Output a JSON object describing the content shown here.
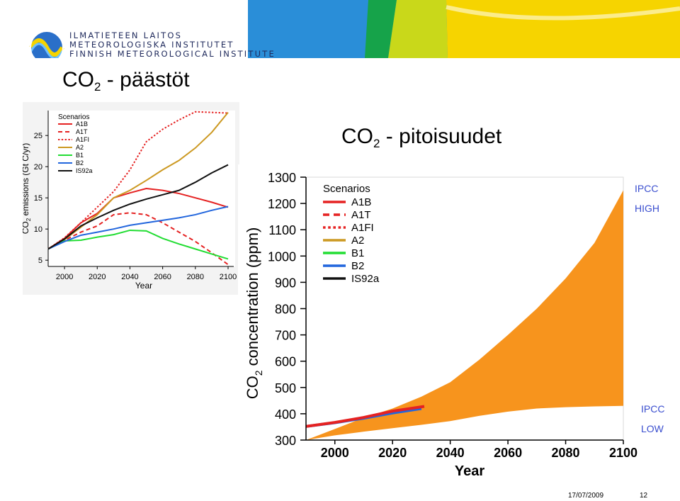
{
  "header": {
    "institute_lines": [
      "ILMATIETEEN LAITOS",
      "METEOROLOGISKA INSTITUTET",
      "FINNISH METEOROLOGICAL INSTITUTE"
    ],
    "banner_colors": [
      "#2a8ed8",
      "#16a34a",
      "#c9d81a",
      "#f6d400"
    ]
  },
  "titles": {
    "left_prefix": "CO",
    "left_sub": "2",
    "left_suffix": " - päästöt",
    "mid_prefix": "CO",
    "mid_sub": "2",
    "mid_suffix": " - pitoisuudet"
  },
  "side_labels": {
    "high_1": "IPCC",
    "high_2": "HIGH",
    "low_1": "IPCC",
    "low_2": "LOW"
  },
  "footer": {
    "date": "17/07/2009",
    "page": "12"
  },
  "chart_data": [
    {
      "type": "line",
      "xlabel": "Year",
      "ylabel_main": "CO",
      "ylabel_sub": "2",
      "ylabel_rest": " emissions (Gt C/yr)",
      "xlim": [
        1990,
        2100
      ],
      "ylim": [
        4,
        29
      ],
      "xticks": [
        2000,
        2020,
        2040,
        2060,
        2080,
        2100
      ],
      "yticks": [
        5,
        10,
        15,
        20,
        25
      ],
      "legend_title": "Scenarios",
      "legend_position": "top-left",
      "x": [
        1990,
        2000,
        2010,
        2020,
        2030,
        2040,
        2050,
        2060,
        2070,
        2080,
        2090,
        2100
      ],
      "series": [
        {
          "name": "A1B",
          "color": "#e52222",
          "dash": "solid",
          "values": [
            6.8,
            8.5,
            11.0,
            12.5,
            15.0,
            15.8,
            16.5,
            16.2,
            15.7,
            15.0,
            14.3,
            13.5
          ]
        },
        {
          "name": "A1T",
          "color": "#e52222",
          "dash": "dashed",
          "values": [
            6.8,
            8.2,
            9.5,
            10.5,
            12.3,
            12.6,
            12.3,
            11.0,
            9.5,
            8.0,
            6.2,
            4.3
          ]
        },
        {
          "name": "A1FI",
          "color": "#e52222",
          "dash": "dotted",
          "values": [
            6.8,
            8.6,
            11.0,
            13.5,
            16.0,
            19.5,
            24.0,
            26.0,
            27.5,
            28.8,
            28.7,
            28.6
          ]
        },
        {
          "name": "A2",
          "color": "#cc9922",
          "dash": "solid",
          "values": [
            6.8,
            8.3,
            10.3,
            12.3,
            15.0,
            16.2,
            17.8,
            19.5,
            21.0,
            23.0,
            25.5,
            28.7
          ]
        },
        {
          "name": "B1",
          "color": "#22dd33",
          "dash": "solid",
          "values": [
            6.8,
            8.1,
            8.2,
            8.7,
            9.1,
            9.8,
            9.7,
            8.5,
            7.6,
            6.8,
            6.0,
            5.2
          ]
        },
        {
          "name": "B2",
          "color": "#2266dd",
          "dash": "solid",
          "values": [
            6.8,
            8.0,
            9.0,
            9.5,
            10.0,
            10.6,
            11.0,
            11.4,
            11.8,
            12.3,
            13.0,
            13.6
          ]
        },
        {
          "name": "IS92a",
          "color": "#111111",
          "dash": "solid",
          "values": [
            6.8,
            8.4,
            10.5,
            11.8,
            13.0,
            14.0,
            14.8,
            15.5,
            16.2,
            17.5,
            19.0,
            20.3
          ]
        }
      ]
    },
    {
      "type": "area",
      "xlabel": "Year",
      "ylabel_main": "CO",
      "ylabel_sub": "2",
      "ylabel_rest": " concentration (ppm)",
      "xlim": [
        1990,
        2100
      ],
      "ylim": [
        300,
        1300
      ],
      "xticks": [
        2000,
        2020,
        2040,
        2060,
        2080,
        2100
      ],
      "yticks": [
        300,
        400,
        500,
        600,
        700,
        800,
        900,
        1000,
        1100,
        1200,
        1300
      ],
      "legend_title": "Scenarios",
      "legend_position": "top-left",
      "legend_entries": [
        {
          "name": "A1B",
          "color": "#e52222",
          "dash": "solid"
        },
        {
          "name": "A1T",
          "color": "#e52222",
          "dash": "dashed"
        },
        {
          "name": "A1FI",
          "color": "#e52222",
          "dash": "dotted"
        },
        {
          "name": "A2",
          "color": "#cc9922",
          "dash": "solid"
        },
        {
          "name": "B1",
          "color": "#22dd33",
          "dash": "solid"
        },
        {
          "name": "B2",
          "color": "#2266dd",
          "dash": "solid"
        },
        {
          "name": "IS92a",
          "color": "#111111",
          "dash": "solid"
        }
      ],
      "band": {
        "color": "#f7941d",
        "x": [
          1990,
          2000,
          2010,
          2020,
          2030,
          2040,
          2050,
          2060,
          2070,
          2080,
          2090,
          2100
        ],
        "upper": [
          300,
          342,
          385,
          420,
          465,
          520,
          605,
          700,
          800,
          915,
          1050,
          1250
        ],
        "lower": [
          300,
          318,
          332,
          345,
          358,
          372,
          392,
          408,
          420,
          425,
          428,
          430
        ]
      },
      "observed": [
        {
          "name": "B2",
          "color": "#2266dd",
          "x": [
            1990,
            2000,
            2010,
            2020,
            2030
          ],
          "values": [
            352,
            366,
            383,
            403,
            420
          ]
        },
        {
          "name": "A1B",
          "color": "#e52222",
          "x": [
            1990,
            2000,
            2010,
            2020,
            2031
          ],
          "values": [
            352,
            367,
            386,
            410,
            428
          ]
        }
      ]
    }
  ]
}
